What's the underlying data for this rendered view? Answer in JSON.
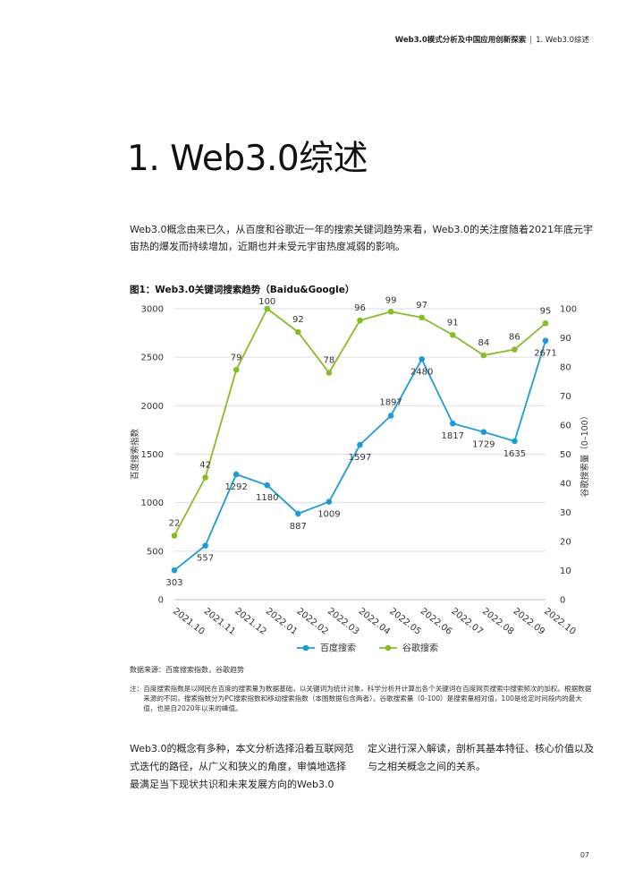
{
  "header": {
    "doc_title": "Web3.0模式分析及中国应用创新探索",
    "separator": "|",
    "section": "1. Web3.0综述"
  },
  "title": "1. Web3.0综述",
  "intro": "Web3.0概念由来已久，从百度和谷歌近一年的搜索关键词趋势来看，Web3.0的关注度随着2021年底元宇宙热的爆发而持续增加，近期也并未受元宇宙热度减弱的影响。",
  "figure_title": "图1：Web3.0关键词搜索趋势（Baidu&Google）",
  "chart_data": {
    "type": "line",
    "categories": [
      "2021.10",
      "2021.11",
      "2021.12",
      "2022.01",
      "2022.02",
      "2022.03",
      "2022.04",
      "2022.05",
      "2022.06",
      "2022.07",
      "2022.08",
      "2022.09",
      "2022.10"
    ],
    "series": [
      {
        "name": "百度搜索",
        "axis": "left",
        "color": "#1e9ad6",
        "values": [
          303,
          557,
          1292,
          1180,
          887,
          1009,
          1597,
          1897,
          2480,
          1817,
          1729,
          1635,
          2671
        ]
      },
      {
        "name": "谷歌搜索",
        "axis": "right",
        "color": "#86bc25",
        "values": [
          22,
          42,
          79,
          100,
          92,
          78,
          96,
          99,
          97,
          91,
          84,
          86,
          95
        ]
      }
    ],
    "ylabel_left": "百度搜索指数",
    "ylabel_right": "谷歌搜索量（0–100）",
    "ylim_left": [
      0,
      3000
    ],
    "yticks_left": [
      0,
      500,
      1000,
      1500,
      2000,
      2500,
      3000
    ],
    "ylim_right": [
      0,
      100
    ],
    "yticks_right": [
      0,
      10,
      20,
      30,
      40,
      50,
      60,
      70,
      80,
      90,
      100
    ],
    "grid": "horizontal",
    "legend": "bottom-center",
    "data_labels": true
  },
  "source": "数据来源：百度搜索指数，谷歌趋势",
  "note": {
    "label": "注：",
    "text": "百度搜索指数是以网民在百度的搜索量为数据基础，以关键词为统计对象，科学分析并计算出各个关键词在百度网页搜索中搜索频次的加权。根据数据来源的不同，搜索指数分为PC搜索指数和移动搜索指数（本图数据包含两者）。谷歌搜索量（0-100）是搜索量相对值，100是给定时间段内的最大值，也是自2020年以来的峰值。"
  },
  "body": {
    "left": "Web3.0的概念有多种，本文分析选择沿着互联网范式迭代的路径，从广义和狭义的角度，审慎地选择最满足当下现状共识和未来发展方向的Web3.0",
    "right": "定义进行深入解读，剖析其基本特征、核心价值以及与之相关概念之间的关系。"
  },
  "page_number": "07"
}
